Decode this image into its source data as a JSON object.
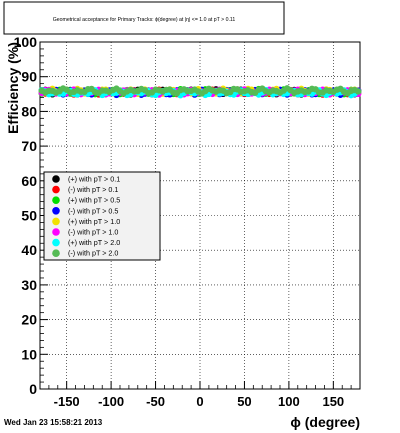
{
  "chart_data": {
    "type": "scatter",
    "title": "Geometrical acceptance for Primary Tracks: ϕ(degree) at |η| <= 1.0 at pT > 0.11",
    "xlabel": "ϕ (degree)",
    "ylabel": "Efficiency (%)",
    "xlim": [
      -180,
      180
    ],
    "ylim": [
      0,
      100
    ],
    "x_ticks": [
      -150,
      -100,
      -50,
      0,
      50,
      100,
      150
    ],
    "y_ticks": [
      0,
      10,
      20,
      30,
      40,
      50,
      60,
      70,
      80,
      90,
      100
    ],
    "grid": true,
    "legend_position": "middle-left",
    "series": [
      {
        "name": "(+) with pT > 0.1",
        "color": "#000000",
        "level": 85.6
      },
      {
        "name": "(-) with pT > 0.1",
        "color": "#ff0000",
        "level": 85.6
      },
      {
        "name": "(+) with pT > 0.5",
        "color": "#00dd00",
        "level": 85.7
      },
      {
        "name": "(-) with pT > 0.5",
        "color": "#0000ff",
        "level": 85.5
      },
      {
        "name": "(+) with pT > 1.0",
        "color": "#f2e100",
        "level": 85.8
      },
      {
        "name": "(-) with pT > 1.0",
        "color": "#ff00ff",
        "level": 85.6
      },
      {
        "name": "(+) with pT > 2.0",
        "color": "#00ffff",
        "level": 85.4
      },
      {
        "name": "(-) with pT > 2.0",
        "color": "#55bb55",
        "level": 85.9
      }
    ]
  },
  "footer": "Wed Jan 23 15:58:21 2013"
}
